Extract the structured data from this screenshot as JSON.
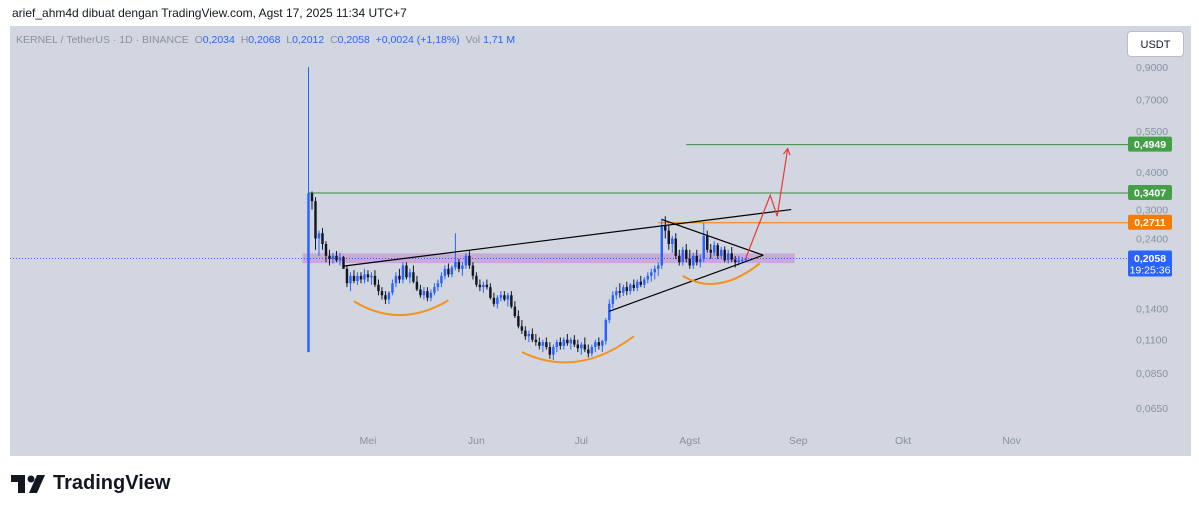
{
  "caption": "arief_ahm4d dibuat dengan TradingView.com, Agst 17, 2025 11:34 UTC+7",
  "header": {
    "symbol": "KERNEL / TetherUS · 1D · BINANCE",
    "o_label": "O",
    "o_value": "0,2034",
    "h_label": "H",
    "h_value": "0,2068",
    "l_label": "L",
    "l_value": "0,2012",
    "c_label": "C",
    "c_value": "0,2058",
    "change": "+0,0024 (+1,18%)",
    "vol_label": "Vol",
    "vol_value": "1,71 M"
  },
  "currency_button": "USDT",
  "brand": "TradingView",
  "colors": {
    "up": "#2962ff",
    "down": "#131722",
    "zone": "#c39bd3",
    "support_line": "#388e3c",
    "resistance_line": "#f57c00",
    "neckline": "#000000",
    "cup_arc": "#f5921e",
    "projection": "#e53935",
    "price_line": "#2962ff",
    "label_green": "#43a047",
    "label_orange": "#f57c00",
    "label_blue": "#2962ff"
  },
  "chart_data": {
    "type": "candlestick",
    "price_axis": {
      "scale": "log",
      "ticks": [
        "0,9000",
        "0,7000",
        "0,5500",
        "0,4000",
        "0,3000",
        "0,2400",
        "0,1400",
        "0,1100",
        "0,0850",
        "0,0650"
      ],
      "tick_values": [
        0.9,
        0.7,
        0.55,
        0.4,
        0.3,
        0.24,
        0.14,
        0.11,
        0.085,
        0.065
      ]
    },
    "time_axis": {
      "labels": [
        "Mei",
        "Jun",
        "Jul",
        "Agst",
        "Sep",
        "Okt",
        "Nov"
      ],
      "dates": [
        "2025-05-01",
        "2025-06-01",
        "2025-07-01",
        "2025-08-01",
        "2025-09-01",
        "2025-10-01",
        "2025-11-01"
      ],
      "range": [
        "2025-04-11",
        "2025-11-30"
      ]
    },
    "horizontal_levels": [
      {
        "value": 0.4949,
        "label": "0,4949",
        "kind": "target"
      },
      {
        "value": 0.3407,
        "label": "0,3407",
        "kind": "resistance"
      },
      {
        "value": 0.2711,
        "label": "0,2711",
        "kind": "resistance"
      }
    ],
    "current_price": {
      "value": 0.2058,
      "label": "0,2058",
      "countdown": "19:25:36"
    },
    "candles": [
      {
        "d": "2025-04-14",
        "o": 0.1,
        "h": 0.9,
        "l": 0.1,
        "c": 0.34
      },
      {
        "d": "2025-04-15",
        "o": 0.34,
        "h": 0.345,
        "l": 0.3,
        "c": 0.32
      },
      {
        "d": "2025-04-16",
        "o": 0.32,
        "h": 0.33,
        "l": 0.22,
        "c": 0.24
      },
      {
        "d": "2025-04-17",
        "o": 0.24,
        "h": 0.255,
        "l": 0.21,
        "c": 0.25
      },
      {
        "d": "2025-04-18",
        "o": 0.25,
        "h": 0.26,
        "l": 0.22,
        "c": 0.23
      },
      {
        "d": "2025-04-19",
        "o": 0.23,
        "h": 0.235,
        "l": 0.2,
        "c": 0.21
      },
      {
        "d": "2025-04-20",
        "o": 0.21,
        "h": 0.22,
        "l": 0.195,
        "c": 0.205
      },
      {
        "d": "2025-04-21",
        "o": 0.205,
        "h": 0.215,
        "l": 0.198,
        "c": 0.21
      },
      {
        "d": "2025-04-22",
        "o": 0.21,
        "h": 0.218,
        "l": 0.2,
        "c": 0.203
      },
      {
        "d": "2025-04-23",
        "o": 0.203,
        "h": 0.215,
        "l": 0.195,
        "c": 0.208
      },
      {
        "d": "2025-04-24",
        "o": 0.208,
        "h": 0.21,
        "l": 0.19,
        "c": 0.19
      },
      {
        "d": "2025-04-25",
        "o": 0.19,
        "h": 0.195,
        "l": 0.165,
        "c": 0.17
      },
      {
        "d": "2025-04-26",
        "o": 0.17,
        "h": 0.185,
        "l": 0.16,
        "c": 0.18
      },
      {
        "d": "2025-04-27",
        "o": 0.18,
        "h": 0.188,
        "l": 0.17,
        "c": 0.173
      },
      {
        "d": "2025-04-28",
        "o": 0.173,
        "h": 0.185,
        "l": 0.168,
        "c": 0.18
      },
      {
        "d": "2025-04-29",
        "o": 0.18,
        "h": 0.185,
        "l": 0.17,
        "c": 0.175
      },
      {
        "d": "2025-04-30",
        "o": 0.175,
        "h": 0.19,
        "l": 0.17,
        "c": 0.182
      },
      {
        "d": "2025-05-01",
        "o": 0.182,
        "h": 0.188,
        "l": 0.172,
        "c": 0.178
      },
      {
        "d": "2025-05-02",
        "o": 0.178,
        "h": 0.185,
        "l": 0.168,
        "c": 0.18
      },
      {
        "d": "2025-05-03",
        "o": 0.18,
        "h": 0.188,
        "l": 0.165,
        "c": 0.168
      },
      {
        "d": "2025-05-04",
        "o": 0.168,
        "h": 0.175,
        "l": 0.155,
        "c": 0.16
      },
      {
        "d": "2025-05-05",
        "o": 0.16,
        "h": 0.165,
        "l": 0.15,
        "c": 0.155
      },
      {
        "d": "2025-05-06",
        "o": 0.155,
        "h": 0.16,
        "l": 0.145,
        "c": 0.15
      },
      {
        "d": "2025-05-07",
        "o": 0.15,
        "h": 0.16,
        "l": 0.145,
        "c": 0.158
      },
      {
        "d": "2025-05-08",
        "o": 0.158,
        "h": 0.175,
        "l": 0.155,
        "c": 0.17
      },
      {
        "d": "2025-05-09",
        "o": 0.17,
        "h": 0.185,
        "l": 0.165,
        "c": 0.18
      },
      {
        "d": "2025-05-10",
        "o": 0.18,
        "h": 0.19,
        "l": 0.17,
        "c": 0.175
      },
      {
        "d": "2025-05-11",
        "o": 0.175,
        "h": 0.2,
        "l": 0.17,
        "c": 0.195
      },
      {
        "d": "2025-05-12",
        "o": 0.195,
        "h": 0.2,
        "l": 0.175,
        "c": 0.178
      },
      {
        "d": "2025-05-13",
        "o": 0.178,
        "h": 0.19,
        "l": 0.17,
        "c": 0.185
      },
      {
        "d": "2025-05-14",
        "o": 0.185,
        "h": 0.195,
        "l": 0.17,
        "c": 0.172
      },
      {
        "d": "2025-05-15",
        "o": 0.172,
        "h": 0.18,
        "l": 0.16,
        "c": 0.162
      },
      {
        "d": "2025-05-16",
        "o": 0.162,
        "h": 0.168,
        "l": 0.152,
        "c": 0.155
      },
      {
        "d": "2025-05-17",
        "o": 0.155,
        "h": 0.165,
        "l": 0.15,
        "c": 0.16
      },
      {
        "d": "2025-05-18",
        "o": 0.16,
        "h": 0.165,
        "l": 0.148,
        "c": 0.152
      },
      {
        "d": "2025-05-19",
        "o": 0.152,
        "h": 0.162,
        "l": 0.148,
        "c": 0.158
      },
      {
        "d": "2025-05-20",
        "o": 0.158,
        "h": 0.17,
        "l": 0.155,
        "c": 0.165
      },
      {
        "d": "2025-05-21",
        "o": 0.165,
        "h": 0.175,
        "l": 0.16,
        "c": 0.17
      },
      {
        "d": "2025-05-22",
        "o": 0.17,
        "h": 0.185,
        "l": 0.165,
        "c": 0.18
      },
      {
        "d": "2025-05-23",
        "o": 0.18,
        "h": 0.195,
        "l": 0.175,
        "c": 0.19
      },
      {
        "d": "2025-05-24",
        "o": 0.19,
        "h": 0.198,
        "l": 0.178,
        "c": 0.182
      },
      {
        "d": "2025-05-25",
        "o": 0.182,
        "h": 0.195,
        "l": 0.178,
        "c": 0.192
      },
      {
        "d": "2025-05-26",
        "o": 0.192,
        "h": 0.25,
        "l": 0.188,
        "c": 0.2
      },
      {
        "d": "2025-05-27",
        "o": 0.2,
        "h": 0.205,
        "l": 0.185,
        "c": 0.19
      },
      {
        "d": "2025-05-28",
        "o": 0.19,
        "h": 0.2,
        "l": 0.18,
        "c": 0.195
      },
      {
        "d": "2025-05-29",
        "o": 0.195,
        "h": 0.215,
        "l": 0.19,
        "c": 0.21
      },
      {
        "d": "2025-05-30",
        "o": 0.21,
        "h": 0.22,
        "l": 0.19,
        "c": 0.195
      },
      {
        "d": "2025-05-31",
        "o": 0.195,
        "h": 0.2,
        "l": 0.175,
        "c": 0.18
      },
      {
        "d": "2025-06-01",
        "o": 0.18,
        "h": 0.185,
        "l": 0.165,
        "c": 0.168
      },
      {
        "d": "2025-06-02",
        "o": 0.168,
        "h": 0.175,
        "l": 0.16,
        "c": 0.165
      },
      {
        "d": "2025-06-03",
        "o": 0.165,
        "h": 0.172,
        "l": 0.158,
        "c": 0.168
      },
      {
        "d": "2025-06-04",
        "o": 0.168,
        "h": 0.175,
        "l": 0.162,
        "c": 0.165
      },
      {
        "d": "2025-06-05",
        "o": 0.165,
        "h": 0.17,
        "l": 0.15,
        "c": 0.152
      },
      {
        "d": "2025-06-06",
        "o": 0.152,
        "h": 0.158,
        "l": 0.142,
        "c": 0.145
      },
      {
        "d": "2025-06-07",
        "o": 0.145,
        "h": 0.155,
        "l": 0.14,
        "c": 0.152
      },
      {
        "d": "2025-06-08",
        "o": 0.152,
        "h": 0.16,
        "l": 0.148,
        "c": 0.155
      },
      {
        "d": "2025-06-09",
        "o": 0.155,
        "h": 0.16,
        "l": 0.148,
        "c": 0.15
      },
      {
        "d": "2025-06-10",
        "o": 0.15,
        "h": 0.158,
        "l": 0.142,
        "c": 0.155
      },
      {
        "d": "2025-06-11",
        "o": 0.155,
        "h": 0.16,
        "l": 0.14,
        "c": 0.142
      },
      {
        "d": "2025-06-12",
        "o": 0.142,
        "h": 0.148,
        "l": 0.13,
        "c": 0.132
      },
      {
        "d": "2025-06-13",
        "o": 0.132,
        "h": 0.138,
        "l": 0.12,
        "c": 0.122
      },
      {
        "d": "2025-06-14",
        "o": 0.122,
        "h": 0.128,
        "l": 0.115,
        "c": 0.118
      },
      {
        "d": "2025-06-15",
        "o": 0.118,
        "h": 0.122,
        "l": 0.11,
        "c": 0.113
      },
      {
        "d": "2025-06-16",
        "o": 0.113,
        "h": 0.118,
        "l": 0.108,
        "c": 0.115
      },
      {
        "d": "2025-06-17",
        "o": 0.115,
        "h": 0.12,
        "l": 0.108,
        "c": 0.11
      },
      {
        "d": "2025-06-18",
        "o": 0.11,
        "h": 0.115,
        "l": 0.105,
        "c": 0.108
      },
      {
        "d": "2025-06-19",
        "o": 0.108,
        "h": 0.112,
        "l": 0.102,
        "c": 0.105
      },
      {
        "d": "2025-06-20",
        "o": 0.105,
        "h": 0.11,
        "l": 0.1,
        "c": 0.108
      },
      {
        "d": "2025-06-21",
        "o": 0.108,
        "h": 0.112,
        "l": 0.102,
        "c": 0.104
      },
      {
        "d": "2025-06-22",
        "o": 0.104,
        "h": 0.108,
        "l": 0.095,
        "c": 0.098
      },
      {
        "d": "2025-06-23",
        "o": 0.098,
        "h": 0.106,
        "l": 0.094,
        "c": 0.104
      },
      {
        "d": "2025-06-24",
        "o": 0.104,
        "h": 0.11,
        "l": 0.1,
        "c": 0.108
      },
      {
        "d": "2025-06-25",
        "o": 0.108,
        "h": 0.112,
        "l": 0.102,
        "c": 0.105
      },
      {
        "d": "2025-06-26",
        "o": 0.105,
        "h": 0.112,
        "l": 0.102,
        "c": 0.11
      },
      {
        "d": "2025-06-27",
        "o": 0.11,
        "h": 0.115,
        "l": 0.105,
        "c": 0.107
      },
      {
        "d": "2025-06-28",
        "o": 0.107,
        "h": 0.112,
        "l": 0.102,
        "c": 0.11
      },
      {
        "d": "2025-06-29",
        "o": 0.11,
        "h": 0.114,
        "l": 0.104,
        "c": 0.106
      },
      {
        "d": "2025-06-30",
        "o": 0.106,
        "h": 0.11,
        "l": 0.1,
        "c": 0.103
      },
      {
        "d": "2025-07-01",
        "o": 0.103,
        "h": 0.108,
        "l": 0.098,
        "c": 0.106
      },
      {
        "d": "2025-07-02",
        "o": 0.106,
        "h": 0.112,
        "l": 0.1,
        "c": 0.102
      },
      {
        "d": "2025-07-03",
        "o": 0.102,
        "h": 0.106,
        "l": 0.096,
        "c": 0.099
      },
      {
        "d": "2025-07-04",
        "o": 0.099,
        "h": 0.106,
        "l": 0.097,
        "c": 0.104
      },
      {
        "d": "2025-07-05",
        "o": 0.104,
        "h": 0.11,
        "l": 0.1,
        "c": 0.108
      },
      {
        "d": "2025-07-06",
        "o": 0.108,
        "h": 0.112,
        "l": 0.102,
        "c": 0.105
      },
      {
        "d": "2025-07-07",
        "o": 0.105,
        "h": 0.11,
        "l": 0.1,
        "c": 0.109
      },
      {
        "d": "2025-07-08",
        "o": 0.109,
        "h": 0.13,
        "l": 0.106,
        "c": 0.128
      },
      {
        "d": "2025-07-09",
        "o": 0.128,
        "h": 0.15,
        "l": 0.125,
        "c": 0.145
      },
      {
        "d": "2025-07-10",
        "o": 0.145,
        "h": 0.16,
        "l": 0.14,
        "c": 0.155
      },
      {
        "d": "2025-07-11",
        "o": 0.155,
        "h": 0.165,
        "l": 0.15,
        "c": 0.16
      },
      {
        "d": "2025-07-12",
        "o": 0.16,
        "h": 0.17,
        "l": 0.152,
        "c": 0.158
      },
      {
        "d": "2025-07-13",
        "o": 0.158,
        "h": 0.168,
        "l": 0.154,
        "c": 0.165
      },
      {
        "d": "2025-07-14",
        "o": 0.165,
        "h": 0.172,
        "l": 0.155,
        "c": 0.16
      },
      {
        "d": "2025-07-15",
        "o": 0.16,
        "h": 0.17,
        "l": 0.156,
        "c": 0.168
      },
      {
        "d": "2025-07-16",
        "o": 0.168,
        "h": 0.175,
        "l": 0.16,
        "c": 0.164
      },
      {
        "d": "2025-07-17",
        "o": 0.164,
        "h": 0.175,
        "l": 0.16,
        "c": 0.172
      },
      {
        "d": "2025-07-18",
        "o": 0.172,
        "h": 0.18,
        "l": 0.165,
        "c": 0.168
      },
      {
        "d": "2025-07-19",
        "o": 0.168,
        "h": 0.178,
        "l": 0.164,
        "c": 0.175
      },
      {
        "d": "2025-07-20",
        "o": 0.175,
        "h": 0.185,
        "l": 0.17,
        "c": 0.18
      },
      {
        "d": "2025-07-21",
        "o": 0.18,
        "h": 0.19,
        "l": 0.172,
        "c": 0.185
      },
      {
        "d": "2025-07-22",
        "o": 0.185,
        "h": 0.195,
        "l": 0.175,
        "c": 0.19
      },
      {
        "d": "2025-07-23",
        "o": 0.19,
        "h": 0.2,
        "l": 0.18,
        "c": 0.195
      },
      {
        "d": "2025-07-24",
        "o": 0.195,
        "h": 0.28,
        "l": 0.19,
        "c": 0.265
      },
      {
        "d": "2025-07-25",
        "o": 0.265,
        "h": 0.285,
        "l": 0.24,
        "c": 0.255
      },
      {
        "d": "2025-07-26",
        "o": 0.255,
        "h": 0.265,
        "l": 0.22,
        "c": 0.23
      },
      {
        "d": "2025-07-27",
        "o": 0.23,
        "h": 0.245,
        "l": 0.215,
        "c": 0.24
      },
      {
        "d": "2025-07-28",
        "o": 0.24,
        "h": 0.25,
        "l": 0.205,
        "c": 0.21
      },
      {
        "d": "2025-07-29",
        "o": 0.21,
        "h": 0.22,
        "l": 0.195,
        "c": 0.2
      },
      {
        "d": "2025-07-30",
        "o": 0.2,
        "h": 0.225,
        "l": 0.195,
        "c": 0.22
      },
      {
        "d": "2025-07-31",
        "o": 0.22,
        "h": 0.23,
        "l": 0.2,
        "c": 0.205
      },
      {
        "d": "2025-08-01",
        "o": 0.205,
        "h": 0.22,
        "l": 0.19,
        "c": 0.195
      },
      {
        "d": "2025-08-02",
        "o": 0.195,
        "h": 0.215,
        "l": 0.19,
        "c": 0.21
      },
      {
        "d": "2025-08-03",
        "o": 0.21,
        "h": 0.22,
        "l": 0.195,
        "c": 0.2
      },
      {
        "d": "2025-08-04",
        "o": 0.2,
        "h": 0.212,
        "l": 0.192,
        "c": 0.205
      },
      {
        "d": "2025-08-05",
        "o": 0.205,
        "h": 0.27,
        "l": 0.2,
        "c": 0.245
      },
      {
        "d": "2025-08-06",
        "o": 0.245,
        "h": 0.255,
        "l": 0.215,
        "c": 0.22
      },
      {
        "d": "2025-08-07",
        "o": 0.22,
        "h": 0.23,
        "l": 0.205,
        "c": 0.215
      },
      {
        "d": "2025-08-08",
        "o": 0.215,
        "h": 0.235,
        "l": 0.21,
        "c": 0.228
      },
      {
        "d": "2025-08-09",
        "o": 0.228,
        "h": 0.232,
        "l": 0.205,
        "c": 0.21
      },
      {
        "d": "2025-08-10",
        "o": 0.21,
        "h": 0.225,
        "l": 0.205,
        "c": 0.22
      },
      {
        "d": "2025-08-11",
        "o": 0.22,
        "h": 0.226,
        "l": 0.2,
        "c": 0.203
      },
      {
        "d": "2025-08-12",
        "o": 0.203,
        "h": 0.22,
        "l": 0.198,
        "c": 0.214
      },
      {
        "d": "2025-08-13",
        "o": 0.214,
        "h": 0.225,
        "l": 0.2,
        "c": 0.204
      },
      {
        "d": "2025-08-14",
        "o": 0.204,
        "h": 0.21,
        "l": 0.192,
        "c": 0.2
      },
      {
        "d": "2025-08-15",
        "o": 0.2,
        "h": 0.21,
        "l": 0.195,
        "c": 0.203
      },
      {
        "d": "2025-08-16",
        "o": 0.203,
        "h": 0.208,
        "l": 0.198,
        "c": 0.2034
      },
      {
        "d": "2025-08-17",
        "o": 0.2034,
        "h": 0.2068,
        "l": 0.2012,
        "c": 0.2058
      }
    ],
    "annotations": {
      "zone": {
        "from": "2025-04-14",
        "to": "2025-08-31",
        "low": 0.1985,
        "high": 0.214
      },
      "rising_trendline": {
        "from": [
          "2025-04-24",
          0.194
        ],
        "to": [
          "2025-08-30",
          0.3
        ]
      },
      "triangle_upper": {
        "from": [
          "2025-07-24",
          0.278
        ],
        "to": [
          "2025-08-22",
          0.211
        ]
      },
      "triangle_lower": {
        "from": [
          "2025-07-09",
          0.137
        ],
        "to": [
          "2025-08-22",
          0.211
        ]
      },
      "cup_arcs": [
        {
          "from": [
            "2025-04-27",
            0.148
          ],
          "bottom": [
            "2025-05-10",
            0.133
          ],
          "to": [
            "2025-05-24",
            0.149
          ]
        },
        {
          "from": [
            "2025-06-14",
            0.1
          ],
          "bottom": [
            "2025-06-30",
            0.093
          ],
          "to": [
            "2025-07-16",
            0.113
          ]
        },
        {
          "from": [
            "2025-07-30",
            0.18
          ],
          "bottom": [
            "2025-08-09",
            0.17
          ],
          "to": [
            "2025-08-21",
            0.198
          ]
        }
      ],
      "projection_path": [
        [
          "2025-08-17",
          0.206
        ],
        [
          "2025-08-24",
          0.335
        ],
        [
          "2025-08-26",
          0.285
        ],
        [
          "2025-08-29",
          0.48
        ]
      ]
    }
  }
}
